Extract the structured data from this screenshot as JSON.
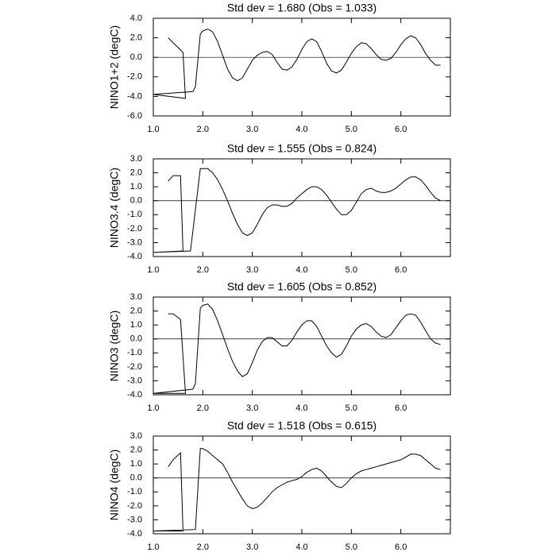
{
  "chart_data": [
    {
      "type": "line",
      "title": "Std dev = 1.680 (Obs = 1.033)",
      "ylabel": "NINO1+2 (degC)",
      "color": "#000000",
      "xlim": [
        1.0,
        7.0
      ],
      "xticks": [
        {
          "value": 1,
          "label": "1.0"
        },
        {
          "value": 2,
          "label": "2.0"
        },
        {
          "value": 3,
          "label": "3.0"
        },
        {
          "value": 4,
          "label": "4.0"
        },
        {
          "value": 5,
          "label": "5.0"
        },
        {
          "value": 6,
          "label": "6.0"
        }
      ],
      "ylim": [
        -6,
        4
      ],
      "yticks": [
        {
          "value": 4,
          "label": "4.0"
        },
        {
          "value": 2,
          "label": "2.0"
        },
        {
          "value": 0,
          "label": "0.0"
        },
        {
          "value": -2,
          "label": "-2.0"
        },
        {
          "value": -4,
          "label": "-4.0"
        },
        {
          "value": -6,
          "label": "-6.0"
        }
      ],
      "x": [
        1.3,
        1.6,
        1.65,
        1.0,
        1.8,
        1.85,
        1.95,
        2.0,
        2.1,
        2.2,
        2.3,
        2.4,
        2.5,
        2.6,
        2.7,
        2.8,
        2.9,
        3.0,
        3.1,
        3.2,
        3.3,
        3.4,
        3.5,
        3.6,
        3.7,
        3.8,
        3.9,
        4.0,
        4.1,
        4.2,
        4.3,
        4.4,
        4.5,
        4.6,
        4.7,
        4.8,
        4.9,
        5.0,
        5.1,
        5.2,
        5.3,
        5.4,
        5.5,
        5.6,
        5.7,
        5.8,
        5.9,
        6.0,
        6.1,
        6.2,
        6.3,
        6.4,
        6.5,
        6.6,
        6.7,
        6.8
      ],
      "values": [
        2.0,
        0.5,
        -4.2,
        -3.8,
        -3.5,
        -3.0,
        2.4,
        2.7,
        2.9,
        2.6,
        1.6,
        0.2,
        -1.2,
        -2.1,
        -2.4,
        -2.1,
        -1.2,
        -0.3,
        0.2,
        0.5,
        0.6,
        0.3,
        -0.5,
        -1.2,
        -1.3,
        -1.0,
        -0.2,
        0.8,
        1.6,
        1.9,
        1.6,
        0.6,
        -0.6,
        -1.4,
        -1.6,
        -1.3,
        -0.5,
        0.4,
        1.1,
        1.5,
        1.4,
        0.9,
        0.3,
        -0.2,
        -0.3,
        -0.1,
        0.5,
        1.3,
        1.9,
        2.2,
        2.0,
        1.3,
        0.4,
        -0.3,
        -0.8,
        -0.8
      ]
    },
    {
      "type": "line",
      "title": "Std dev = 1.555 (Obs = 0.824)",
      "ylabel": "NINO3.4 (degC)",
      "color": "#000000",
      "xlim": [
        1.0,
        7.0
      ],
      "xticks": [
        {
          "value": 1,
          "label": "1.0"
        },
        {
          "value": 2,
          "label": "2.0"
        },
        {
          "value": 3,
          "label": "3.0"
        },
        {
          "value": 4,
          "label": "4.0"
        },
        {
          "value": 5,
          "label": "5.0"
        },
        {
          "value": 6,
          "label": "6.0"
        }
      ],
      "ylim": [
        -4,
        3
      ],
      "yticks": [
        {
          "value": 3,
          "label": "3.0"
        },
        {
          "value": 2,
          "label": "2.0"
        },
        {
          "value": 1,
          "label": "1.0"
        },
        {
          "value": 0,
          "label": "0.0"
        },
        {
          "value": -1,
          "label": "-1.0"
        },
        {
          "value": -2,
          "label": "-2.0"
        },
        {
          "value": -3,
          "label": "-3.0"
        },
        {
          "value": -4,
          "label": "-4.0"
        }
      ],
      "x": [
        1.3,
        1.4,
        1.55,
        1.6,
        1.0,
        1.75,
        1.95,
        2.0,
        2.1,
        2.2,
        2.3,
        2.4,
        2.5,
        2.6,
        2.7,
        2.8,
        2.9,
        3.0,
        3.1,
        3.2,
        3.3,
        3.4,
        3.5,
        3.6,
        3.7,
        3.8,
        3.9,
        4.0,
        4.1,
        4.2,
        4.3,
        4.4,
        4.5,
        4.6,
        4.7,
        4.8,
        4.9,
        5.0,
        5.1,
        5.2,
        5.3,
        5.4,
        5.5,
        5.6,
        5.7,
        5.8,
        5.9,
        6.0,
        6.1,
        6.2,
        6.3,
        6.4,
        6.5,
        6.6,
        6.7,
        6.8
      ],
      "values": [
        1.4,
        1.8,
        1.8,
        -3.6,
        -3.7,
        -3.6,
        2.3,
        2.3,
        2.3,
        2.0,
        1.5,
        0.8,
        0.0,
        -0.9,
        -1.7,
        -2.3,
        -2.5,
        -2.3,
        -1.7,
        -1.0,
        -0.5,
        -0.3,
        -0.3,
        -0.4,
        -0.4,
        -0.2,
        0.2,
        0.5,
        0.8,
        1.0,
        1.0,
        0.8,
        0.4,
        -0.1,
        -0.6,
        -1.0,
        -1.0,
        -0.7,
        -0.1,
        0.5,
        0.8,
        0.9,
        0.7,
        0.6,
        0.6,
        0.7,
        0.9,
        1.2,
        1.5,
        1.7,
        1.7,
        1.5,
        1.1,
        0.6,
        0.2,
        0.0
      ]
    },
    {
      "type": "line",
      "title": "Std dev = 1.605 (Obs = 0.852)",
      "ylabel": "NINO3 (degC)",
      "color": "#000000",
      "xlim": [
        1.0,
        7.0
      ],
      "xticks": [
        {
          "value": 1,
          "label": "1.0"
        },
        {
          "value": 2,
          "label": "2.0"
        },
        {
          "value": 3,
          "label": "3.0"
        },
        {
          "value": 4,
          "label": "4.0"
        },
        {
          "value": 5,
          "label": "5.0"
        },
        {
          "value": 6,
          "label": "6.0"
        }
      ],
      "ylim": [
        -4,
        3
      ],
      "yticks": [
        {
          "value": 3,
          "label": "3.0"
        },
        {
          "value": 2,
          "label": "2.0"
        },
        {
          "value": 1,
          "label": "1.0"
        },
        {
          "value": 0,
          "label": "0.0"
        },
        {
          "value": -1,
          "label": "-1.0"
        },
        {
          "value": -2,
          "label": "-2.0"
        },
        {
          "value": -3,
          "label": "-3.0"
        },
        {
          "value": -4,
          "label": "-4.0"
        }
      ],
      "x": [
        1.3,
        1.4,
        1.55,
        1.65,
        1.0,
        1.8,
        1.85,
        1.95,
        2.0,
        2.1,
        2.2,
        2.3,
        2.4,
        2.5,
        2.6,
        2.7,
        2.8,
        2.9,
        3.0,
        3.1,
        3.2,
        3.3,
        3.4,
        3.5,
        3.6,
        3.7,
        3.8,
        3.9,
        4.0,
        4.1,
        4.2,
        4.3,
        4.4,
        4.5,
        4.6,
        4.7,
        4.8,
        4.9,
        5.0,
        5.1,
        5.2,
        5.3,
        5.4,
        5.5,
        5.6,
        5.7,
        5.8,
        5.9,
        6.0,
        6.1,
        6.2,
        6.3,
        6.4,
        6.5,
        6.6,
        6.7,
        6.8
      ],
      "values": [
        1.8,
        1.8,
        1.4,
        -3.9,
        -3.9,
        -3.6,
        -3.2,
        2.2,
        2.4,
        2.5,
        2.1,
        1.3,
        0.3,
        -0.7,
        -1.6,
        -2.3,
        -2.7,
        -2.5,
        -1.7,
        -0.8,
        -0.2,
        0.1,
        0.1,
        -0.2,
        -0.5,
        -0.5,
        -0.1,
        0.5,
        1.0,
        1.3,
        1.3,
        0.9,
        0.2,
        -0.5,
        -1.0,
        -1.3,
        -1.1,
        -0.5,
        0.2,
        0.7,
        1.0,
        1.1,
        0.9,
        0.5,
        0.2,
        0.1,
        0.3,
        0.8,
        1.3,
        1.7,
        1.8,
        1.7,
        1.2,
        0.6,
        0.0,
        -0.3,
        -0.4
      ]
    },
    {
      "type": "line",
      "title": "Std dev = 1.518 (Obs = 0.615)",
      "ylabel": "NINO4 (degC)",
      "color": "#000000",
      "xlim": [
        1.0,
        7.0
      ],
      "xticks": [
        {
          "value": 1,
          "label": "1.0"
        },
        {
          "value": 2,
          "label": "2.0"
        },
        {
          "value": 3,
          "label": "3.0"
        },
        {
          "value": 4,
          "label": "4.0"
        },
        {
          "value": 5,
          "label": "5.0"
        },
        {
          "value": 6,
          "label": "6.0"
        }
      ],
      "ylim": [
        -4,
        3
      ],
      "yticks": [
        {
          "value": 3,
          "label": "3.0"
        },
        {
          "value": 2,
          "label": "2.0"
        },
        {
          "value": 1,
          "label": "1.0"
        },
        {
          "value": 0,
          "label": "0.0"
        },
        {
          "value": -1,
          "label": "-1.0"
        },
        {
          "value": -2,
          "label": "-2.0"
        },
        {
          "value": -3,
          "label": "-3.0"
        },
        {
          "value": -4,
          "label": "-4.0"
        }
      ],
      "x": [
        1.3,
        1.4,
        1.55,
        1.6,
        1.0,
        1.85,
        1.95,
        2.0,
        2.1,
        2.2,
        2.3,
        2.4,
        2.5,
        2.6,
        2.7,
        2.8,
        2.9,
        3.0,
        3.1,
        3.2,
        3.3,
        3.4,
        3.5,
        3.6,
        3.7,
        3.8,
        3.9,
        4.0,
        4.1,
        4.2,
        4.3,
        4.4,
        4.5,
        4.6,
        4.7,
        4.8,
        4.9,
        5.0,
        5.1,
        5.2,
        5.3,
        5.4,
        5.5,
        5.6,
        5.7,
        5.8,
        5.9,
        6.0,
        6.1,
        6.2,
        6.3,
        6.4,
        6.5,
        6.6,
        6.7,
        6.8
      ],
      "values": [
        0.8,
        1.3,
        1.8,
        -3.8,
        -3.8,
        -3.7,
        2.1,
        2.1,
        1.9,
        1.6,
        1.3,
        1.0,
        0.4,
        -0.3,
        -0.9,
        -1.5,
        -2.0,
        -2.2,
        -2.1,
        -1.8,
        -1.4,
        -1.0,
        -0.7,
        -0.5,
        -0.3,
        -0.2,
        -0.1,
        0.1,
        0.4,
        0.6,
        0.7,
        0.5,
        0.1,
        -0.3,
        -0.6,
        -0.7,
        -0.4,
        0.0,
        0.3,
        0.5,
        0.6,
        0.7,
        0.8,
        0.9,
        1.0,
        1.1,
        1.2,
        1.3,
        1.5,
        1.7,
        1.7,
        1.6,
        1.3,
        1.0,
        0.7,
        0.6
      ]
    }
  ]
}
